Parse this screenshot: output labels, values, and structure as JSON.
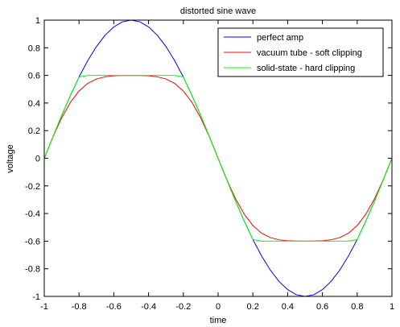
{
  "chart_data": {
    "type": "line",
    "title": "distorted sine wave",
    "xlabel": "time",
    "ylabel": "voltage",
    "xlim": [
      -1,
      1
    ],
    "ylim": [
      -1,
      1
    ],
    "xticks": [
      -1,
      -0.8,
      -0.6,
      -0.4,
      -0.2,
      0,
      0.2,
      0.4,
      0.6,
      0.8,
      1
    ],
    "xtick_labels": [
      "-1",
      "-0.8",
      "-0.6",
      "-0.4",
      "-0.2",
      "0",
      "0.2",
      "0.4",
      "0.6",
      "0.8",
      "1"
    ],
    "yticks": [
      1,
      0.8,
      0.6,
      0.4,
      0.2,
      0,
      -0.2,
      -0.4,
      -0.6,
      -0.8,
      -1
    ],
    "ytick_labels": [
      "1",
      "0.8",
      "0.6",
      "0.4",
      "0.2",
      "0",
      "-0.2",
      "-0.4",
      "-0.6",
      "-0.8",
      "-1"
    ],
    "grid": false,
    "legend_position": "top-right",
    "series": [
      {
        "name": "perfect amp",
        "color": "#0000ff",
        "x": [
          -1,
          -0.95,
          -0.9,
          -0.85,
          -0.8,
          -0.75,
          -0.7,
          -0.65,
          -0.6,
          -0.55,
          -0.5,
          -0.45,
          -0.4,
          -0.35,
          -0.3,
          -0.25,
          -0.2,
          -0.15,
          -0.1,
          -0.05,
          0,
          0.05,
          0.1,
          0.15,
          0.2,
          0.25,
          0.3,
          0.35,
          0.4,
          0.45,
          0.5,
          0.55,
          0.6,
          0.65,
          0.7,
          0.75,
          0.8,
          0.85,
          0.9,
          0.95,
          1
        ],
        "y": [
          0,
          0.156,
          0.309,
          0.454,
          0.588,
          0.707,
          0.809,
          0.891,
          0.951,
          0.988,
          1,
          0.988,
          0.951,
          0.891,
          0.809,
          0.707,
          0.588,
          0.454,
          0.309,
          0.156,
          0,
          -0.156,
          -0.309,
          -0.454,
          -0.588,
          -0.707,
          -0.809,
          -0.891,
          -0.951,
          -0.988,
          -1,
          -0.988,
          -0.951,
          -0.891,
          -0.809,
          -0.707,
          -0.588,
          -0.454,
          -0.309,
          -0.156,
          0
        ]
      },
      {
        "name": "vacuum tube - soft clipping",
        "color": "#ff0000",
        "x": [
          -1,
          -0.95,
          -0.9,
          -0.85,
          -0.8,
          -0.75,
          -0.7,
          -0.65,
          -0.6,
          -0.55,
          -0.5,
          -0.45,
          -0.4,
          -0.35,
          -0.3,
          -0.25,
          -0.2,
          -0.15,
          -0.1,
          -0.05,
          0,
          0.05,
          0.1,
          0.15,
          0.2,
          0.25,
          0.3,
          0.35,
          0.4,
          0.45,
          0.5,
          0.55,
          0.6,
          0.65,
          0.7,
          0.75,
          0.8,
          0.85,
          0.9,
          0.95,
          1
        ],
        "y": [
          0,
          0.154,
          0.292,
          0.404,
          0.487,
          0.542,
          0.574,
          0.59,
          0.597,
          0.599,
          0.6,
          0.599,
          0.597,
          0.59,
          0.574,
          0.542,
          0.487,
          0.404,
          0.292,
          0.154,
          0,
          -0.154,
          -0.292,
          -0.404,
          -0.487,
          -0.542,
          -0.574,
          -0.59,
          -0.597,
          -0.599,
          -0.6,
          -0.599,
          -0.597,
          -0.59,
          -0.574,
          -0.542,
          -0.487,
          -0.404,
          -0.292,
          -0.154,
          0
        ]
      },
      {
        "name": "solid-state - hard clipping",
        "color": "#00ff00",
        "x": [
          -1,
          -0.95,
          -0.9,
          -0.85,
          -0.8,
          -0.75,
          -0.7,
          -0.65,
          -0.6,
          -0.55,
          -0.5,
          -0.45,
          -0.4,
          -0.35,
          -0.3,
          -0.25,
          -0.2,
          -0.15,
          -0.1,
          -0.05,
          0,
          0.05,
          0.1,
          0.15,
          0.2,
          0.25,
          0.3,
          0.35,
          0.4,
          0.45,
          0.5,
          0.55,
          0.6,
          0.65,
          0.7,
          0.75,
          0.8,
          0.85,
          0.9,
          0.95,
          1
        ],
        "y": [
          0,
          0.156,
          0.309,
          0.454,
          0.588,
          0.6,
          0.6,
          0.6,
          0.6,
          0.6,
          0.6,
          0.6,
          0.6,
          0.6,
          0.6,
          0.6,
          0.588,
          0.454,
          0.309,
          0.156,
          0,
          -0.156,
          -0.309,
          -0.454,
          -0.588,
          -0.6,
          -0.6,
          -0.6,
          -0.6,
          -0.6,
          -0.6,
          -0.6,
          -0.6,
          -0.6,
          -0.6,
          -0.6,
          -0.588,
          -0.454,
          -0.309,
          -0.156,
          0
        ]
      }
    ]
  }
}
